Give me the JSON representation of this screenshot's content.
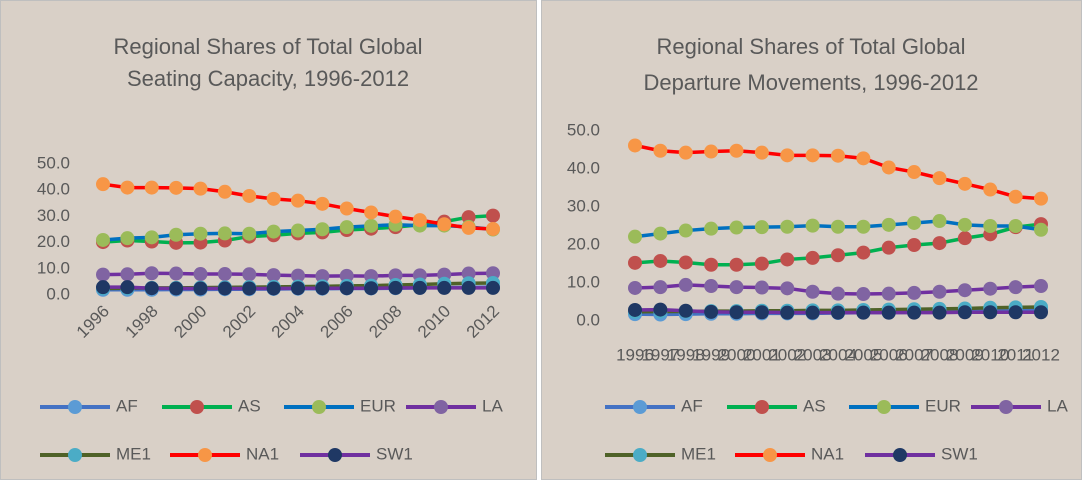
{
  "chart_data": [
    {
      "type": "line",
      "title": [
        "Regional Shares of Total Global",
        "Seating Capacity, 1996-2012"
      ],
      "categories": [
        "1996",
        null,
        "1998",
        null,
        "2000",
        null,
        "2002",
        null,
        "2004",
        null,
        "2006",
        null,
        "2008",
        null,
        "2010",
        null,
        "2012"
      ],
      "x_tick_rotation": -45,
      "ylim": [
        0,
        50
      ],
      "yticks": [
        {
          "value": 0,
          "label": "0.0"
        },
        {
          "value": 10,
          "label": "10.0"
        },
        {
          "value": 20,
          "label": "20.0"
        },
        {
          "value": 30,
          "label": "30.0"
        },
        {
          "value": 40,
          "label": "40.0"
        },
        {
          "value": 50,
          "label": "50.0"
        }
      ],
      "legend": "bottom",
      "series": [
        {
          "name": "AF",
          "color": "#4472c4",
          "marker_color": "#5b9bd5",
          "values": [
            2.0,
            2.0,
            2.0,
            2.1,
            2.1,
            2.2,
            2.2,
            2.3,
            2.4,
            2.4,
            2.5,
            2.5,
            2.6,
            2.7,
            2.8,
            2.9,
            3.0
          ]
        },
        {
          "name": "AS",
          "color": "#00b050",
          "marker_color": "#c0504d",
          "values": [
            20.2,
            20.8,
            20.4,
            19.9,
            20.0,
            20.8,
            22.3,
            22.8,
            23.5,
            23.9,
            24.8,
            25.3,
            25.9,
            26.8,
            28.0,
            29.7,
            30.3
          ]
        },
        {
          "name": "EUR",
          "color": "#0070c0",
          "marker_color": "#9bbb59",
          "values": [
            21.0,
            21.7,
            22.0,
            23.0,
            23.4,
            23.5,
            23.4,
            24.2,
            24.6,
            25.1,
            25.9,
            26.4,
            26.8,
            26.5,
            26.5,
            26.0,
            25.0
          ]
        },
        {
          "name": "LA",
          "color": "#7030a0",
          "marker_color": "#8064a2",
          "values": [
            7.8,
            7.9,
            8.3,
            8.2,
            8.0,
            8.0,
            7.9,
            7.6,
            7.4,
            7.2,
            7.3,
            7.2,
            7.5,
            7.5,
            7.8,
            8.2,
            8.3
          ]
        },
        {
          "name": "ME1",
          "color": "#4f6228",
          "marker_color": "#4bacc6",
          "values": [
            2.5,
            2.6,
            2.7,
            2.7,
            2.8,
            2.9,
            3.0,
            3.1,
            3.2,
            3.3,
            3.5,
            3.6,
            3.8,
            4.0,
            4.3,
            4.5,
            4.6
          ]
        },
        {
          "name": "NA1",
          "color": "#ff0000",
          "marker_color": "#f79646",
          "values": [
            42.3,
            41.0,
            41.0,
            40.9,
            40.6,
            39.4,
            37.8,
            36.7,
            36.0,
            34.8,
            33.0,
            31.5,
            29.9,
            28.6,
            27.0,
            25.6,
            25.2
          ]
        },
        {
          "name": "SW1",
          "color": "#7030a0",
          "marker_color": "#1f3864",
          "values": [
            3.0,
            3.0,
            2.6,
            2.5,
            2.5,
            2.5,
            2.5,
            2.5,
            2.6,
            2.6,
            2.6,
            2.6,
            2.7,
            2.7,
            2.7,
            2.7,
            2.7
          ]
        }
      ]
    },
    {
      "type": "line",
      "title": [
        "Regional Shares of Total Global",
        "Departure Movements, 1996-2012"
      ],
      "categories": [
        "1996",
        "1997",
        "1998",
        "1999",
        "2000",
        "2001",
        "2002",
        "2003",
        "2004",
        "2005",
        "2006",
        "2007",
        "2008",
        "2009",
        "2010",
        "2011",
        "2012"
      ],
      "x_tick_rotation": 0,
      "ylim": [
        0,
        50
      ],
      "yticks": [
        {
          "value": 0,
          "label": "0.0"
        },
        {
          "value": 10,
          "label": "10.0"
        },
        {
          "value": 20,
          "label": "20.0"
        },
        {
          "value": 30,
          "label": "30.0"
        },
        {
          "value": 40,
          "label": "40.0"
        },
        {
          "value": 50,
          "label": "50.0"
        }
      ],
      "legend": "bottom",
      "series": [
        {
          "name": "AF",
          "color": "#4472c4",
          "marker_color": "#5b9bd5",
          "values": [
            1.8,
            1.7,
            1.8,
            1.9,
            1.9,
            2.0,
            2.0,
            2.0,
            2.1,
            2.2,
            2.2,
            2.3,
            2.4,
            2.6,
            2.9,
            3.0,
            3.2
          ]
        },
        {
          "name": "AS",
          "color": "#00b050",
          "marker_color": "#c0504d",
          "values": [
            15.3,
            15.8,
            15.4,
            14.8,
            14.8,
            15.1,
            16.2,
            16.6,
            17.3,
            18.0,
            19.3,
            20.0,
            20.5,
            21.8,
            22.8,
            24.7,
            25.5
          ]
        },
        {
          "name": "EUR",
          "color": "#0070c0",
          "marker_color": "#9bbb59",
          "values": [
            22.2,
            23.0,
            23.8,
            24.3,
            24.6,
            24.7,
            24.8,
            25.1,
            24.8,
            24.8,
            25.3,
            25.8,
            26.3,
            25.3,
            25.0,
            25.0,
            24.0
          ]
        },
        {
          "name": "LA",
          "color": "#7030a0",
          "marker_color": "#8064a2",
          "values": [
            8.7,
            8.9,
            9.5,
            9.2,
            8.9,
            8.8,
            8.6,
            7.7,
            7.2,
            7.1,
            7.2,
            7.4,
            7.7,
            8.1,
            8.5,
            8.9,
            9.2
          ]
        },
        {
          "name": "ME1",
          "color": "#4f6228",
          "marker_color": "#4bacc6",
          "values": [
            2.4,
            2.5,
            2.5,
            2.6,
            2.6,
            2.7,
            2.7,
            2.8,
            2.8,
            2.9,
            3.0,
            3.1,
            3.2,
            3.3,
            3.5,
            3.6,
            3.7
          ]
        },
        {
          "name": "NA1",
          "color": "#ff0000",
          "marker_color": "#f79646",
          "values": [
            46.2,
            44.8,
            44.3,
            44.6,
            44.8,
            44.3,
            43.6,
            43.6,
            43.5,
            42.8,
            40.4,
            39.2,
            37.6,
            36.1,
            34.6,
            32.7,
            32.2
          ]
        },
        {
          "name": "SW1",
          "color": "#7030a0",
          "marker_color": "#1f3864",
          "values": [
            2.9,
            3.0,
            2.7,
            2.4,
            2.3,
            2.3,
            2.2,
            2.2,
            2.2,
            2.2,
            2.2,
            2.2,
            2.2,
            2.3,
            2.3,
            2.3,
            2.3
          ]
        }
      ]
    }
  ]
}
